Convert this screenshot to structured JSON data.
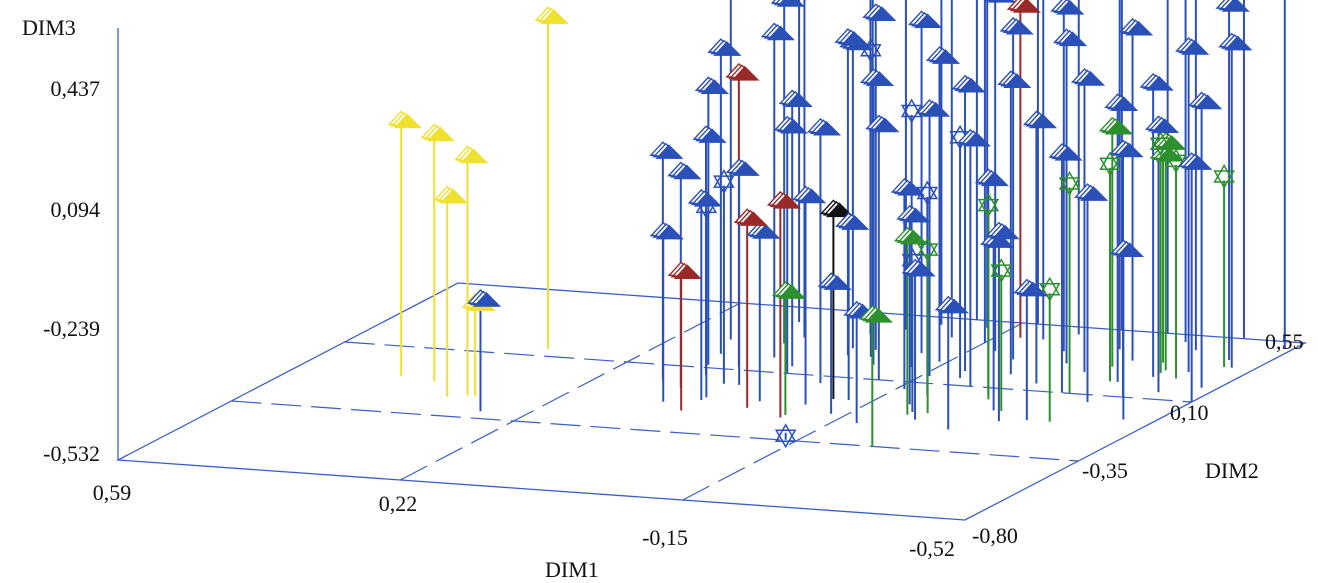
{
  "chart_data": {
    "type": "scatter",
    "subtype": "3d-needle",
    "title": "",
    "axes": {
      "x": {
        "label": "DIM1",
        "ticks": [
          "0,59",
          "0,22",
          "-0,15",
          "-0,52"
        ],
        "range": [
          0.59,
          -0.52
        ]
      },
      "y": {
        "label": "DIM2",
        "ticks": [
          "-0,80",
          "-0,35",
          "0,10",
          "0,55"
        ],
        "range": [
          -0.8,
          0.55
        ]
      },
      "z": {
        "label": "DIM3",
        "ticks": [
          "0,437",
          "0,094",
          "-0,239",
          "-0,532"
        ],
        "range": [
          -0.532,
          0.437
        ]
      }
    },
    "grid": true,
    "colors": {
      "blue": "#2b50b8",
      "red": "#9a2a2a",
      "yellow": "#f0e030",
      "green": "#2e8f2e",
      "black": "#111111"
    },
    "series": [
      {
        "color": "yellow",
        "marker": "arrow",
        "points": [
          [
            0.45,
            -0.1,
            0.12
          ],
          [
            0.4,
            -0.12,
            0.1
          ],
          [
            0.33,
            -0.2,
            0.08
          ],
          [
            0.35,
            -0.22,
            -0.02
          ],
          [
            0.34,
            0.15,
            0.32
          ],
          [
            0.32,
            -0.2,
            -0.3
          ]
        ]
      },
      {
        "color": "red",
        "marker": "arrow",
        "points": [
          [
            0.08,
            0.12,
            0.22
          ],
          [
            0.05,
            -0.2,
            -0.18
          ],
          [
            -0.02,
            -0.15,
            -0.05
          ],
          [
            -0.08,
            -0.2,
            0.02
          ],
          [
            -0.18,
            0.45,
            0.32
          ]
        ]
      },
      {
        "color": "green",
        "marker": "arrow",
        "points": [
          [
            -0.08,
            -0.18,
            -0.22
          ],
          [
            -0.22,
            -0.12,
            -0.08
          ],
          [
            -0.25,
            -0.35,
            -0.2
          ],
          [
            -0.35,
            0.3,
            0.08
          ],
          [
            -0.4,
            0.35,
            0.0
          ],
          [
            -0.42,
            0.3,
            0.05
          ]
        ]
      },
      {
        "color": "green",
        "marker": "star",
        "points": [
          [
            -0.24,
            -0.1,
            -0.12
          ],
          [
            -0.28,
            0.02,
            -0.04
          ],
          [
            -0.32,
            -0.05,
            -0.18
          ],
          [
            -0.36,
            0.1,
            0.0
          ],
          [
            -0.38,
            0.2,
            0.02
          ],
          [
            -0.42,
            0.28,
            0.05
          ],
          [
            -0.45,
            0.25,
            0.02
          ],
          [
            -0.48,
            0.35,
            -0.05
          ],
          [
            -0.4,
            -0.1,
            -0.2
          ]
        ]
      },
      {
        "color": "blue",
        "marker": "star",
        "points": [
          [
            -0.05,
            0.25,
            0.25
          ],
          [
            0.05,
            -0.1,
            -0.05
          ],
          [
            -0.12,
            0.2,
            0.12
          ],
          [
            -0.2,
            0.15,
            0.08
          ],
          [
            -0.2,
            0.02,
            -0.02
          ],
          [
            -0.22,
            -0.1,
            -0.15
          ],
          [
            -0.12,
            -0.3,
            -0.55
          ],
          [
            0.06,
            0.0,
            -0.02
          ]
        ]
      },
      {
        "color": "black",
        "marker": "arrow",
        "points": [
          [
            -0.1,
            -0.05,
            -0.05
          ]
        ]
      },
      {
        "color": "blue",
        "marker": "arrow",
        "points": [
          [
            0.28,
            -0.3,
            -0.25
          ],
          [
            0.12,
            0.12,
            0.18
          ],
          [
            0.1,
            0.05,
            0.08
          ],
          [
            0.1,
            -0.05,
            0.02
          ],
          [
            0.08,
            0.3,
            0.35
          ],
          [
            0.06,
            0.2,
            0.3
          ],
          [
            0.05,
            -0.12,
            -0.02
          ],
          [
            0.02,
            0.15,
            0.15
          ],
          [
            0.0,
            0.4,
            0.4
          ],
          [
            -0.02,
            0.25,
            0.28
          ],
          [
            -0.02,
            -0.1,
            -0.1
          ],
          [
            -0.04,
            0.3,
            0.33
          ],
          [
            -0.05,
            0.05,
            0.12
          ],
          [
            -0.06,
            0.5,
            0.5
          ],
          [
            -0.07,
            0.2,
            0.2
          ],
          [
            -0.08,
            -0.1,
            0.0
          ],
          [
            -0.1,
            0.42,
            0.38
          ],
          [
            -0.1,
            0.3,
            0.32
          ],
          [
            -0.11,
            0.1,
            0.12
          ],
          [
            -0.12,
            0.5,
            0.48
          ],
          [
            -0.12,
            -0.05,
            -0.08
          ],
          [
            -0.14,
            0.25,
            0.25
          ],
          [
            -0.15,
            0.4,
            0.42
          ],
          [
            -0.16,
            0.15,
            0.15
          ],
          [
            -0.17,
            0.55,
            0.52
          ],
          [
            -0.18,
            0.35,
            0.38
          ],
          [
            -0.19,
            0.2,
            0.2
          ],
          [
            -0.2,
            -0.05,
            -0.05
          ],
          [
            -0.21,
            0.45,
            0.45
          ],
          [
            -0.22,
            0.3,
            0.32
          ],
          [
            -0.23,
            0.1,
            0.1
          ],
          [
            -0.24,
            0.5,
            0.48
          ],
          [
            -0.25,
            0.2,
            0.22
          ],
          [
            -0.26,
            0.38,
            0.35
          ],
          [
            -0.27,
            0.05,
            0.02
          ],
          [
            -0.28,
            0.55,
            0.55
          ],
          [
            -0.29,
            0.3,
            0.3
          ],
          [
            -0.3,
            0.15,
            0.14
          ],
          [
            -0.31,
            -0.05,
            -0.1
          ],
          [
            -0.32,
            0.42,
            0.4
          ],
          [
            -0.33,
            0.25,
            0.22
          ],
          [
            -0.34,
            0.55,
            0.5
          ],
          [
            -0.35,
            0.1,
            0.08
          ],
          [
            -0.36,
            0.35,
            0.32
          ],
          [
            -0.37,
            -0.1,
            -0.2
          ],
          [
            -0.38,
            0.5,
            0.45
          ],
          [
            -0.39,
            0.2,
            0.18
          ],
          [
            -0.4,
            0.05,
            0.0
          ],
          [
            -0.41,
            0.45,
            0.42
          ],
          [
            -0.42,
            0.25,
            0.22
          ],
          [
            -0.43,
            0.1,
            0.1
          ],
          [
            -0.44,
            0.55,
            0.52
          ],
          [
            -0.45,
            0.3,
            0.3
          ],
          [
            -0.46,
            0.15,
            0.15
          ],
          [
            -0.47,
            0.4,
            0.38
          ],
          [
            -0.48,
            -0.05,
            -0.1
          ],
          [
            -0.49,
            0.35,
            0.3
          ],
          [
            -0.5,
            0.2,
            0.2
          ],
          [
            -0.51,
            0.5,
            0.48
          ],
          [
            -0.52,
            0.1,
            0.08
          ],
          [
            0.15,
            0.3,
            0.4
          ],
          [
            0.14,
            0.0,
            0.05
          ],
          [
            0.13,
            0.2,
            0.25
          ],
          [
            0.11,
            0.45,
            0.45
          ],
          [
            0.09,
            -0.15,
            -0.1
          ],
          [
            0.07,
            0.35,
            0.38
          ],
          [
            0.04,
            0.0,
            0.02
          ],
          [
            0.03,
            0.5,
            0.48
          ],
          [
            0.01,
            0.1,
            0.1
          ],
          [
            -0.01,
            0.3,
            0.25
          ],
          [
            -0.03,
            0.45,
            0.42
          ],
          [
            -0.09,
            0.55,
            0.55
          ],
          [
            -0.13,
            -0.15,
            -0.2
          ],
          [
            -0.16,
            0.05,
            -0.02
          ],
          [
            -0.18,
            -0.2,
            -0.25
          ],
          [
            -0.24,
            -0.15,
            -0.15
          ],
          [
            -0.3,
            -0.2,
            -0.22
          ],
          [
            -0.34,
            -0.12,
            -0.05
          ]
        ]
      }
    ]
  }
}
